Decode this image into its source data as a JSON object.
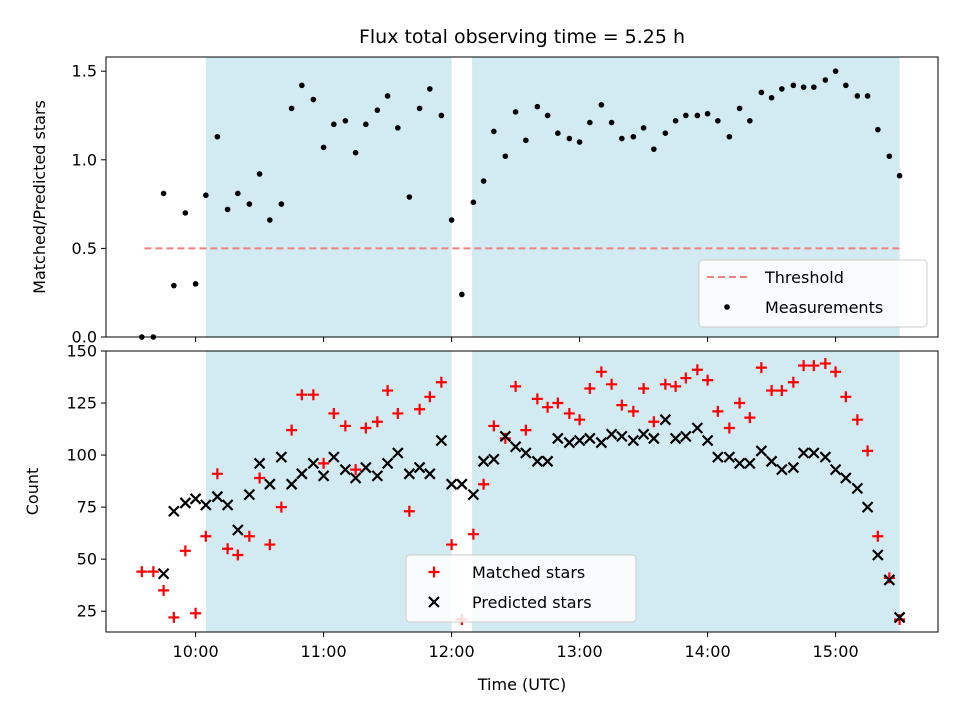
{
  "chart_data": {
    "title": "Flux total observing time = 5.25 h",
    "xlabel": "Time (UTC)",
    "x_ticks": [
      "10:00",
      "11:00",
      "12:00",
      "13:00",
      "14:00",
      "15:00"
    ],
    "x_tick_hours": [
      10,
      11,
      12,
      13,
      14,
      15
    ],
    "xlim_hours": [
      9.3,
      15.8
    ],
    "shaded_intervals_hours": [
      [
        10.08,
        12.0
      ],
      [
        12.16,
        15.5
      ]
    ],
    "shade_color": "#add8e6",
    "panels": [
      {
        "type": "scatter",
        "ylabel": "Matched/Predicted stars",
        "ylim": [
          0,
          1.58
        ],
        "y_ticks": [
          "0.0",
          "0.5",
          "1.0",
          "1.5"
        ],
        "y_tick_values": [
          0,
          0.5,
          1.0,
          1.5
        ],
        "threshold": {
          "name": "Threshold",
          "value": 0.5,
          "x_range": [
            9.6,
            15.5
          ],
          "color": "#f08080",
          "style": "dashed"
        },
        "series": [
          {
            "name": "Measurements",
            "color": "#000000",
            "marker": "dot",
            "x": [
              9.58,
              9.67,
              9.75,
              9.83,
              9.92,
              10.0,
              10.08,
              10.17,
              10.25,
              10.33,
              10.42,
              10.5,
              10.58,
              10.67,
              10.75,
              10.83,
              10.92,
              11.0,
              11.08,
              11.17,
              11.25,
              11.33,
              11.42,
              11.5,
              11.58,
              11.67,
              11.75,
              11.83,
              11.92,
              12.0,
              12.08,
              12.17,
              12.25,
              12.33,
              12.42,
              12.5,
              12.58,
              12.67,
              12.75,
              12.83,
              12.92,
              13.0,
              13.08,
              13.17,
              13.25,
              13.33,
              13.42,
              13.5,
              13.58,
              13.67,
              13.75,
              13.83,
              13.92,
              14.0,
              14.08,
              14.17,
              14.25,
              14.33,
              14.42,
              14.5,
              14.58,
              14.67,
              14.75,
              14.83,
              14.92,
              15.0,
              15.08,
              15.17,
              15.25,
              15.33,
              15.42,
              15.5
            ],
            "y": [
              0.0,
              0.0,
              0.81,
              0.29,
              0.7,
              0.3,
              0.8,
              1.13,
              0.72,
              0.81,
              0.75,
              0.92,
              0.66,
              0.75,
              1.29,
              1.42,
              1.34,
              1.07,
              1.2,
              1.22,
              1.04,
              1.2,
              1.28,
              1.36,
              1.18,
              0.79,
              1.29,
              1.4,
              1.25,
              0.66,
              0.24,
              0.76,
              0.88,
              1.16,
              1.02,
              1.27,
              1.11,
              1.3,
              1.25,
              1.15,
              1.12,
              1.1,
              1.21,
              1.31,
              1.21,
              1.12,
              1.13,
              1.18,
              1.06,
              1.15,
              1.22,
              1.25,
              1.25,
              1.26,
              1.22,
              1.13,
              1.29,
              1.22,
              1.38,
              1.35,
              1.4,
              1.42,
              1.41,
              1.41,
              1.45,
              1.5,
              1.42,
              1.36,
              1.36,
              1.17,
              1.02,
              0.91
            ]
          }
        ]
      },
      {
        "type": "scatter",
        "ylabel": "Count",
        "ylim": [
          15,
          150
        ],
        "y_ticks": [
          "25",
          "50",
          "75",
          "100",
          "125",
          "150"
        ],
        "y_tick_values": [
          25,
          50,
          75,
          100,
          125,
          150
        ],
        "series": [
          {
            "name": "Matched stars",
            "color": "#ff0000",
            "marker": "plus",
            "x": [
              9.58,
              9.67,
              9.75,
              9.83,
              9.92,
              10.0,
              10.08,
              10.17,
              10.25,
              10.33,
              10.42,
              10.5,
              10.58,
              10.67,
              10.75,
              10.83,
              10.92,
              11.0,
              11.08,
              11.17,
              11.25,
              11.33,
              11.42,
              11.5,
              11.58,
              11.67,
              11.75,
              11.83,
              11.92,
              12.0,
              12.08,
              12.17,
              12.25,
              12.33,
              12.42,
              12.5,
              12.58,
              12.67,
              12.75,
              12.83,
              12.92,
              13.0,
              13.08,
              13.17,
              13.25,
              13.33,
              13.42,
              13.5,
              13.58,
              13.67,
              13.75,
              13.83,
              13.92,
              14.0,
              14.08,
              14.17,
              14.25,
              14.33,
              14.42,
              14.5,
              14.58,
              14.67,
              14.75,
              14.83,
              14.92,
              15.0,
              15.08,
              15.17,
              15.25,
              15.33,
              15.42,
              15.5
            ],
            "y": [
              44,
              44,
              35,
              22,
              54,
              24,
              61,
              91,
              55,
              52,
              61,
              89,
              57,
              75,
              112,
              129,
              129,
              96,
              120,
              114,
              93,
              113,
              116,
              131,
              120,
              73,
              122,
              128,
              135,
              57,
              21,
              62,
              86,
              114,
              108,
              133,
              112,
              127,
              123,
              125,
              120,
              117,
              132,
              140,
              134,
              124,
              121,
              132,
              116,
              134,
              133,
              137,
              141,
              136,
              121,
              113,
              125,
              118,
              142,
              131,
              131,
              135,
              143,
              143,
              144,
              140,
              128,
              117,
              102,
              61,
              41,
              21
            ]
          },
          {
            "name": "Predicted stars",
            "color": "#000000",
            "marker": "x",
            "x": [
              9.75,
              9.83,
              9.92,
              10.0,
              10.08,
              10.17,
              10.25,
              10.33,
              10.42,
              10.5,
              10.58,
              10.67,
              10.75,
              10.83,
              10.92,
              11.0,
              11.08,
              11.17,
              11.25,
              11.33,
              11.42,
              11.5,
              11.58,
              11.67,
              11.75,
              11.83,
              11.92,
              12.0,
              12.08,
              12.17,
              12.25,
              12.33,
              12.42,
              12.5,
              12.58,
              12.67,
              12.75,
              12.83,
              12.92,
              13.0,
              13.08,
              13.17,
              13.25,
              13.33,
              13.42,
              13.5,
              13.58,
              13.67,
              13.75,
              13.83,
              13.92,
              14.0,
              14.08,
              14.17,
              14.25,
              14.33,
              14.42,
              14.5,
              14.58,
              14.67,
              14.75,
              14.83,
              14.92,
              15.0,
              15.08,
              15.17,
              15.25,
              15.33,
              15.42,
              15.5
            ],
            "y": [
              43,
              73,
              77,
              79,
              76,
              80,
              76,
              64,
              81,
              96,
              86,
              99,
              86,
              91,
              96,
              90,
              99,
              93,
              89,
              94,
              90,
              96,
              101,
              91,
              94,
              91,
              107,
              86,
              86,
              81,
              97,
              98,
              109,
              104,
              101,
              97,
              97,
              108,
              106,
              107,
              108,
              106,
              110,
              109,
              107,
              110,
              108,
              117,
              108,
              109,
              113,
              107,
              99,
              99,
              96,
              96,
              102,
              97,
              93,
              94,
              101,
              101,
              99,
              93,
              89,
              84,
              75,
              52,
              40,
              22
            ]
          }
        ]
      }
    ],
    "legends": [
      {
        "panel": 0,
        "placement": "lower-right",
        "entries": [
          "Threshold",
          "Measurements"
        ]
      },
      {
        "panel": 1,
        "placement": "lower-center",
        "entries": [
          "Matched stars",
          "Predicted stars"
        ]
      }
    ]
  }
}
